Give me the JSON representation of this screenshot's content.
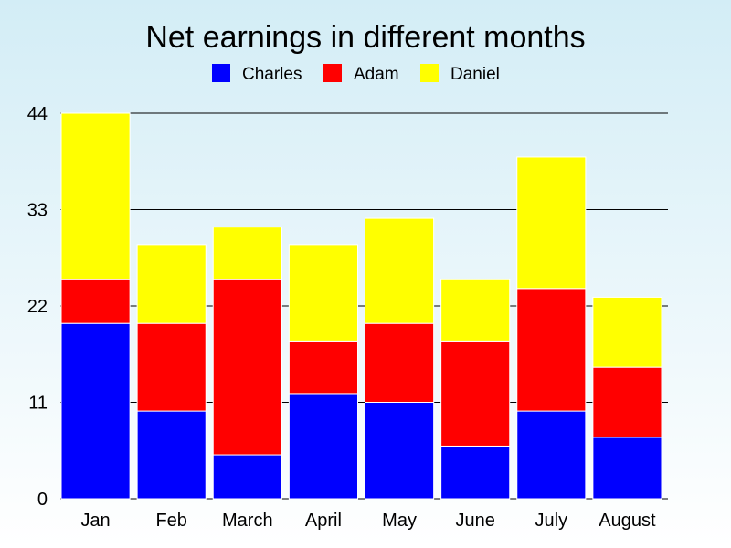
{
  "chart_data": {
    "type": "bar",
    "stacked": true,
    "title": "Net earnings in different months",
    "xlabel": "",
    "ylabel": "",
    "categories": [
      "Jan",
      "Feb",
      "March",
      "April",
      "May",
      "June",
      "July",
      "August"
    ],
    "series": [
      {
        "name": "Charles",
        "color": "#0000ff",
        "values": [
          20,
          10,
          5,
          12,
          11,
          6,
          10,
          7
        ]
      },
      {
        "name": "Adam",
        "color": "#ff0000",
        "values": [
          5,
          10,
          20,
          6,
          9,
          12,
          14,
          8
        ]
      },
      {
        "name": "Daniel",
        "color": "#ffff00",
        "values": [
          19,
          9,
          6,
          11,
          12,
          7,
          15,
          8
        ]
      }
    ],
    "ylim": [
      0,
      44
    ],
    "yticks": [
      "0",
      "11",
      "22",
      "33",
      "44"
    ],
    "grid": true,
    "legend_position": "top"
  }
}
